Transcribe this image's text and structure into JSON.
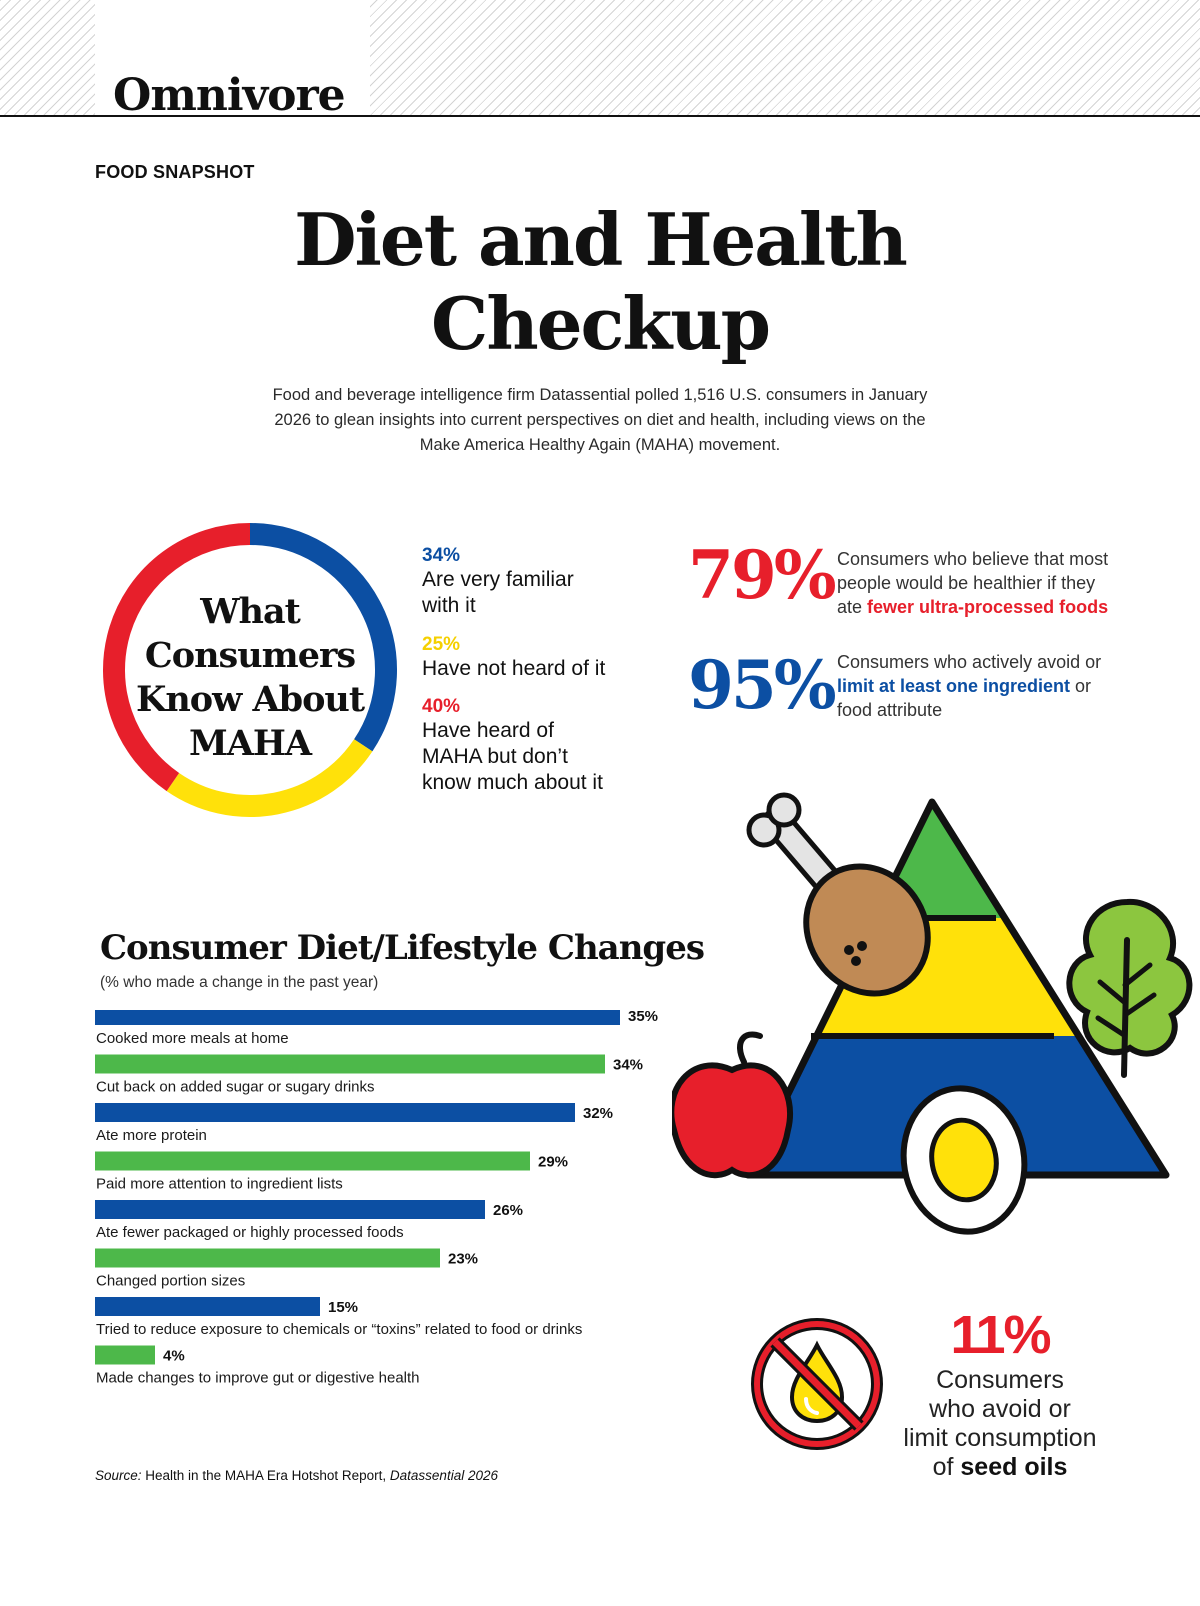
{
  "header": {
    "brand": "Omnivore",
    "kicker": "FOOD SNAPSHOT"
  },
  "title_line1": "Diet and Health",
  "title_line2": "Checkup",
  "intro_line1": "Food and beverage intelligence firm Datassential polled 1,516 U.S. consumers in January",
  "intro_line2": "2026 to glean insights into current perspectives on diet and health, including views on the",
  "intro_line3": "Make America Healthy Again (MAHA) movement.",
  "colors": {
    "blue": "#0c4fa3",
    "yellow": "#ffe10a",
    "red": "#e71f2b",
    "green": "#4db84a"
  },
  "maha": {
    "title_lines": [
      "What",
      "Consumers",
      "Know About",
      "MAHA"
    ],
    "segments": [
      {
        "pct": "34%",
        "value": 34,
        "label_lines": [
          "Are very familiar",
          "with it"
        ],
        "color": "#0c4fa3"
      },
      {
        "pct": "25%",
        "value": 25,
        "label_lines": [
          "Have not heard of it"
        ],
        "color": "#ffe10a"
      },
      {
        "pct": "40%",
        "value": 40,
        "label_lines": [
          "Have heard of",
          "MAHA but don’t",
          "know much about it"
        ],
        "color": "#e71f2b"
      }
    ]
  },
  "stat_79": {
    "number": "79%",
    "text_line1": "Consumers who believe that most",
    "text_line2": "people would be healthier if they",
    "text_pre": "ate ",
    "text_bold": "fewer ultra-processed foods"
  },
  "stat_95": {
    "number": "95%",
    "text_line1": "Consumers who actively avoid or",
    "text_bold": "limit at least one ingredient",
    "text_post": " or",
    "text_line3": "food attribute"
  },
  "chart_data": {
    "type": "bar",
    "title": "Consumer Diet/Lifestyle Changes",
    "subtitle": "(% who made a change in the past year)",
    "categories": [
      "Cooked more meals at home",
      "Cut back on added sugar or sugary drinks",
      "Ate more protein",
      "Paid more attention to ingredient lists",
      "Ate fewer packaged or highly processed foods",
      "Changed portion sizes",
      "Tried to reduce exposure to chemicals or “toxins” related to food or drinks",
      "Made changes to improve gut or digestive health"
    ],
    "values": [
      35,
      34,
      32,
      29,
      26,
      23,
      15,
      4
    ],
    "value_labels": [
      "35%",
      "34%",
      "32%",
      "29%",
      "26%",
      "23%",
      "15%",
      "4%"
    ],
    "bar_colors": [
      "#0c4fa3",
      "#4db84a",
      "#0c4fa3",
      "#4db84a",
      "#0c4fa3",
      "#4db84a",
      "#0c4fa3",
      "#4db84a"
    ],
    "xlim": [
      0,
      35
    ]
  },
  "oil": {
    "pct": "11%",
    "line1": "Consumers",
    "line2": "who avoid or",
    "line3": "limit consumption",
    "line4_pre": "of ",
    "line4_bold": "seed oils"
  },
  "source": {
    "label": "Source:",
    "text": " Health in the MAHA Era Hotshot Report, ",
    "italic": "Datassential 2026"
  }
}
